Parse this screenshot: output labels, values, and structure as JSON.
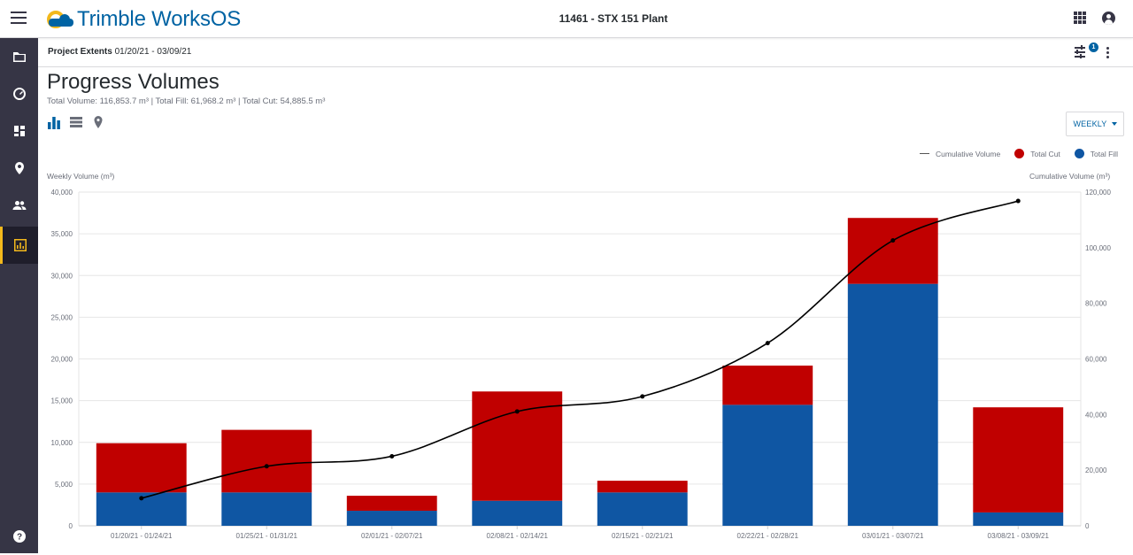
{
  "header": {
    "brand_name": "Trimble WorksOS",
    "project_title": "11461 - STX 151 Plant",
    "icons": {
      "menu": "hamburger-icon",
      "apps": "apps-grid-icon",
      "account": "account-icon"
    }
  },
  "sidebar": {
    "items": [
      {
        "icon": "folder-icon"
      },
      {
        "icon": "dashboard-gauge-icon"
      },
      {
        "icon": "widgets-icon"
      },
      {
        "icon": "location-pin-icon"
      },
      {
        "icon": "people-icon"
      },
      {
        "icon": "report-chart-icon",
        "active": true
      }
    ],
    "help_icon": "help-icon"
  },
  "subheader": {
    "extents_label": "Project Extents",
    "extents_range": "01/20/21 - 03/09/21",
    "filter_badge": "1"
  },
  "page": {
    "title": "Progress Volumes",
    "summary": "Total Volume: 116,853.7 m³ | Total Fill: 61,968.2 m³ | Total Cut: 54,885.5 m³",
    "period_selected": "WEEKLY"
  },
  "colors": {
    "cut": "#c00000",
    "fill": "#0f56a3",
    "cumulative": "#000000",
    "accent": "#0063a3",
    "rail": "#363545",
    "active_indicator": "#f2b81c"
  },
  "chart_data": {
    "type": "bar",
    "stacked": true,
    "categories": [
      "01/20/21 - 01/24/21",
      "01/25/21 - 01/31/21",
      "02/01/21 - 02/07/21",
      "02/08/21 - 02/14/21",
      "02/15/21 - 02/21/21",
      "02/22/21 - 02/28/21",
      "03/01/21 - 03/07/21",
      "03/08/21 - 03/09/21"
    ],
    "series": [
      {
        "name": "Total Fill",
        "values": [
          4000,
          4000,
          1800,
          3000,
          4000,
          14500,
          29000,
          1600
        ]
      },
      {
        "name": "Total Cut",
        "values": [
          5900,
          7500,
          1800,
          13100,
          1400,
          4700,
          7900,
          12600
        ]
      }
    ],
    "cumulative": {
      "name": "Cumulative Volume",
      "values": [
        9900,
        21400,
        25000,
        41100,
        46500,
        65700,
        102600,
        116800
      ]
    },
    "ylabel": "Weekly Volume (m³)",
    "y2label": "Cumulative Volume (m³)",
    "ylim": [
      0,
      40000
    ],
    "y2lim": [
      0,
      120000
    ],
    "yticks": [
      "0",
      "5,000",
      "10,000",
      "15,000",
      "20,000",
      "25,000",
      "30,000",
      "35,000",
      "40,000"
    ],
    "y2ticks": [
      "0",
      "20,000",
      "40,000",
      "60,000",
      "80,000",
      "100,000",
      "120,000"
    ],
    "legend_order": [
      "Cumulative Volume",
      "Total Cut",
      "Total Fill"
    ],
    "legend_position": "top-right",
    "grid": true
  }
}
